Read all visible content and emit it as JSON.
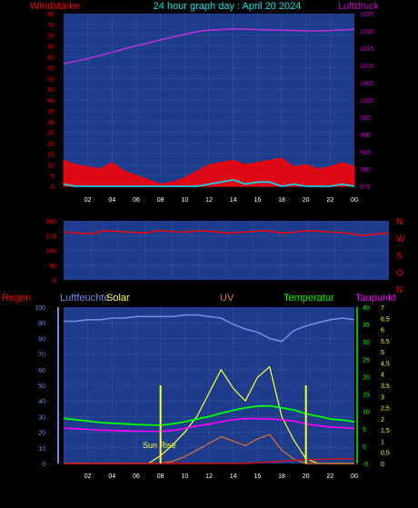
{
  "title": "24 hour graph day : April 20 2024",
  "colors": {
    "background": "#000000",
    "plot": "#1e3c8c",
    "grid": "#5a78b4",
    "wind": "#ff0000",
    "gust": "#00e6ff",
    "pressure": "#b432dc",
    "humidity": "#6e8ce6",
    "solar": "#ffff33",
    "uv": "#e07030",
    "temperature": "#00ff00",
    "dewpoint": "#ff00ff",
    "rain": "#d01010",
    "axis_magenta": "#cc00cc",
    "axis_yellow": "#ffff00"
  },
  "x_ticks": [
    "02",
    "04",
    "06",
    "08",
    "10",
    "12",
    "14",
    "16",
    "18",
    "20",
    "22",
    "00"
  ],
  "chart_data": [
    {
      "type": "line",
      "name": "wind-pressure",
      "left_label": "Windstärke",
      "right_label": "Luftdruck",
      "left_ticks": [
        "80",
        "75",
        "70",
        "65",
        "60",
        "55",
        "50",
        "45",
        "40",
        "35",
        "30",
        "25",
        "20",
        "15",
        "10",
        "5",
        "0"
      ],
      "right_ticks": [
        "1025",
        "1020",
        "1015",
        "1010",
        "1005",
        "1000",
        "995",
        "990",
        "985",
        "980",
        "975"
      ],
      "ylim_left": [
        0,
        80
      ],
      "ylim_right": [
        975,
        1025
      ],
      "x_hours": [
        0,
        1,
        2,
        3,
        4,
        5,
        6,
        7,
        8,
        9,
        10,
        11,
        12,
        13,
        14,
        15,
        16,
        17,
        18,
        19,
        20,
        21,
        22,
        23,
        24
      ],
      "series": [
        {
          "key": "pressure",
          "values": [
            1010.5,
            1011.2,
            1012,
            1012.9,
            1013.8,
            1014.8,
            1015.7,
            1016.5,
            1017.4,
            1018.2,
            1019,
            1019.8,
            1020.2,
            1020.4,
            1020.6,
            1020.5,
            1020.4,
            1020.3,
            1020.2,
            1020.1,
            1020,
            1020,
            1020.1,
            1020.3,
            1020.5
          ]
        },
        {
          "key": "wind",
          "values": [
            12,
            10,
            9,
            8,
            11,
            7,
            5,
            3,
            1,
            2,
            4,
            7,
            10,
            11,
            12,
            10,
            11,
            12,
            13,
            9,
            10,
            8,
            9,
            11,
            9
          ]
        },
        {
          "key": "gust",
          "values": [
            1,
            0,
            0,
            0,
            0,
            0,
            0,
            0,
            0,
            0,
            0,
            0,
            1,
            2,
            3,
            1,
            2,
            2,
            0,
            1,
            0,
            0,
            0,
            1,
            0
          ]
        }
      ]
    },
    {
      "type": "line",
      "name": "wind-direction",
      "left_ticks": [
        "360",
        "270",
        "180",
        "90",
        "0"
      ],
      "right_labels": [
        "N",
        "W",
        "S",
        "O",
        "N"
      ],
      "ylim": [
        0,
        360
      ],
      "series": [
        {
          "key": "direction",
          "values": [
            290,
            285,
            280,
            300,
            295,
            290,
            285,
            300,
            295,
            290,
            300,
            295,
            285,
            290,
            295,
            300,
            285,
            290,
            300,
            295,
            290,
            285,
            270,
            280,
            285
          ]
        }
      ]
    },
    {
      "type": "line",
      "name": "climate",
      "labels": {
        "rain": "Regen",
        "humidity": "Luftfeuchte",
        "solar": "Solar",
        "uv": "UV",
        "temperature": "Temperatur",
        "dewpoint": "Taupunkt",
        "sun_rise": "Sun Rise"
      },
      "left_ticks": [
        "100",
        "90",
        "80",
        "70",
        "60",
        "50",
        "40",
        "30",
        "20",
        "10",
        "0"
      ],
      "right_uv_ticks": [
        "7",
        "6,5",
        "6",
        "5,5",
        "5",
        "4,5",
        "4",
        "3,5",
        "3",
        "2,5",
        "2",
        "1,5",
        "1",
        "0,5",
        "0"
      ],
      "right_temp_ticks": [
        "40",
        "35",
        "30",
        "25",
        "20",
        "15",
        "10",
        "5",
        "0",
        "-5"
      ],
      "ylim_left": [
        0,
        100
      ],
      "ylim_temp": [
        -5,
        40
      ],
      "ylim_uv": [
        0,
        7
      ],
      "x_hours": [
        0,
        1,
        2,
        3,
        4,
        5,
        6,
        7,
        8,
        9,
        10,
        11,
        12,
        13,
        14,
        15,
        16,
        17,
        18,
        19,
        20,
        21,
        22,
        23,
        24
      ],
      "series": [
        {
          "key": "humidity",
          "values": [
            91,
            91,
            92,
            92,
            93,
            93,
            94,
            94,
            94,
            94,
            95,
            95,
            94,
            93,
            89,
            86,
            84,
            80,
            78,
            85,
            88,
            90,
            92,
            93,
            92
          ]
        },
        {
          "key": "temperature",
          "values": [
            8,
            7.6,
            7.2,
            6.8,
            6.6,
            6.4,
            6.2,
            6.1,
            6,
            6.4,
            7,
            7.8,
            8.5,
            9.5,
            10.3,
            11,
            11.5,
            11.6,
            11,
            10.4,
            9.3,
            8.6,
            7.8,
            7.5,
            7
          ]
        },
        {
          "key": "dewpoint",
          "values": [
            5.2,
            5,
            4.8,
            4.6,
            4.5,
            4.4,
            4.3,
            4.3,
            4.2,
            4.5,
            5.1,
            5.8,
            6.3,
            7,
            7.6,
            7.9,
            7.9,
            7.8,
            7.6,
            7.2,
            6.4,
            5.9,
            5.5,
            5.3,
            5.1
          ]
        },
        {
          "key": "rain",
          "values": [
            0,
            0,
            0,
            0,
            0,
            0,
            0,
            0,
            0,
            0,
            0,
            0,
            0,
            0,
            0,
            0,
            0.5,
            1,
            1.5,
            2,
            2.5,
            2.5,
            3,
            3,
            3
          ]
        },
        {
          "key": "solar",
          "values": [
            0,
            0,
            0,
            0,
            0,
            0,
            0,
            0,
            5,
            12,
            20,
            30,
            45,
            60,
            48,
            40,
            55,
            62,
            30,
            15,
            3,
            0,
            0,
            0,
            0
          ]
        },
        {
          "key": "uv",
          "values": [
            0,
            0,
            0,
            0,
            0,
            0,
            0,
            0,
            0,
            0.1,
            0.3,
            0.6,
            0.9,
            1.2,
            1.0,
            0.8,
            1.1,
            1.3,
            0.6,
            0.2,
            0,
            0,
            0,
            0,
            0
          ]
        }
      ]
    }
  ]
}
